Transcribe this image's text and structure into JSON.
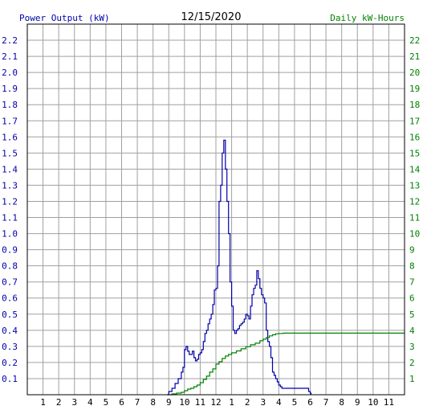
{
  "chart_data": {
    "type": "line",
    "title": "12/15/2020",
    "left_axis_label": "Power Output (kW)",
    "right_axis_label": "Daily kW-Hours",
    "left_ylim": [
      0,
      2.3
    ],
    "right_ylim": [
      0,
      23
    ],
    "xlim": [
      0,
      24
    ],
    "grid": true,
    "x_ticks": [
      {
        "x": 1,
        "label": "1"
      },
      {
        "x": 2,
        "label": "2"
      },
      {
        "x": 3,
        "label": "3"
      },
      {
        "x": 4,
        "label": "4"
      },
      {
        "x": 5,
        "label": "5"
      },
      {
        "x": 6,
        "label": "6"
      },
      {
        "x": 7,
        "label": "7"
      },
      {
        "x": 8,
        "label": "8"
      },
      {
        "x": 9,
        "label": "9"
      },
      {
        "x": 10,
        "label": "10"
      },
      {
        "x": 11,
        "label": "11"
      },
      {
        "x": 12,
        "label": "12"
      },
      {
        "x": 13,
        "label": "1"
      },
      {
        "x": 14,
        "label": "2"
      },
      {
        "x": 15,
        "label": "3"
      },
      {
        "x": 16,
        "label": "4"
      },
      {
        "x": 17,
        "label": "5"
      },
      {
        "x": 18,
        "label": "6"
      },
      {
        "x": 19,
        "label": "7"
      },
      {
        "x": 20,
        "label": "8"
      },
      {
        "x": 21,
        "label": "9"
      },
      {
        "x": 22,
        "label": "10"
      },
      {
        "x": 23,
        "label": "11"
      }
    ],
    "left_ticks": [
      "0.1",
      "0.2",
      "0.3",
      "0.4",
      "0.5",
      "0.6",
      "0.7",
      "0.8",
      "0.9",
      "1.0",
      "1.1",
      "1.2",
      "1.3",
      "1.4",
      "1.5",
      "1.6",
      "1.7",
      "1.8",
      "1.9",
      "2.0",
      "2.1",
      "2.2"
    ],
    "right_ticks": [
      "1",
      "2",
      "3",
      "4",
      "5",
      "6",
      "7",
      "8",
      "9",
      "10",
      "11",
      "12",
      "13",
      "14",
      "15",
      "16",
      "17",
      "18",
      "19",
      "20",
      "21",
      "22"
    ],
    "series": [
      {
        "axis": "left",
        "color": "#0000aa",
        "x": [
          8.9,
          9.0,
          9.2,
          9.4,
          9.6,
          9.8,
          9.9,
          10.0,
          10.1,
          10.2,
          10.3,
          10.5,
          10.6,
          10.7,
          10.8,
          10.9,
          11.0,
          11.1,
          11.2,
          11.3,
          11.4,
          11.5,
          11.6,
          11.7,
          11.8,
          11.9,
          12.0,
          12.1,
          12.2,
          12.3,
          12.4,
          12.5,
          12.6,
          12.7,
          12.8,
          12.9,
          13.0,
          13.1,
          13.2,
          13.3,
          13.4,
          13.5,
          13.6,
          13.7,
          13.8,
          13.9,
          14.0,
          14.1,
          14.2,
          14.3,
          14.4,
          14.5,
          14.6,
          14.7,
          14.8,
          14.9,
          15.0,
          15.1,
          15.2,
          15.3,
          15.4,
          15.5,
          15.6,
          15.7,
          15.8,
          15.9,
          16.0,
          16.1,
          16.2,
          16.3,
          16.5,
          16.7,
          16.9,
          17.0,
          17.2,
          17.4,
          17.6,
          17.8,
          17.9,
          18.0,
          18.05
        ],
        "y": [
          0.0,
          0.02,
          0.04,
          0.07,
          0.1,
          0.14,
          0.17,
          0.28,
          0.3,
          0.27,
          0.25,
          0.27,
          0.23,
          0.21,
          0.22,
          0.25,
          0.26,
          0.28,
          0.33,
          0.38,
          0.4,
          0.44,
          0.47,
          0.5,
          0.56,
          0.65,
          0.66,
          0.8,
          1.2,
          1.3,
          1.5,
          1.58,
          1.4,
          1.2,
          1.0,
          0.7,
          0.55,
          0.4,
          0.38,
          0.4,
          0.41,
          0.43,
          0.44,
          0.45,
          0.47,
          0.5,
          0.49,
          0.47,
          0.55,
          0.62,
          0.66,
          0.68,
          0.77,
          0.72,
          0.66,
          0.62,
          0.6,
          0.57,
          0.4,
          0.33,
          0.3,
          0.23,
          0.14,
          0.12,
          0.1,
          0.08,
          0.06,
          0.05,
          0.04,
          0.04,
          0.04,
          0.04,
          0.04,
          0.04,
          0.04,
          0.04,
          0.04,
          0.04,
          0.02,
          0.01,
          0.0
        ]
      },
      {
        "axis": "right",
        "color": "#008000",
        "x": [
          8.9,
          9.2,
          9.5,
          9.8,
          10.0,
          10.2,
          10.4,
          10.6,
          10.8,
          11.0,
          11.2,
          11.4,
          11.6,
          11.8,
          12.0,
          12.2,
          12.4,
          12.6,
          12.8,
          13.0,
          13.3,
          13.6,
          13.9,
          14.2,
          14.5,
          14.8,
          15.0,
          15.2,
          15.4,
          15.6,
          15.8,
          16.0,
          16.3,
          16.6,
          17.0,
          18.0,
          24.0
        ],
        "y": [
          0.0,
          0.05,
          0.1,
          0.15,
          0.25,
          0.35,
          0.4,
          0.5,
          0.6,
          0.75,
          0.95,
          1.15,
          1.4,
          1.6,
          1.9,
          2.05,
          2.25,
          2.4,
          2.5,
          2.6,
          2.72,
          2.85,
          2.98,
          3.1,
          3.2,
          3.35,
          3.45,
          3.55,
          3.65,
          3.72,
          3.78,
          3.8,
          3.82,
          3.82,
          3.82,
          3.82,
          3.82
        ]
      }
    ]
  }
}
